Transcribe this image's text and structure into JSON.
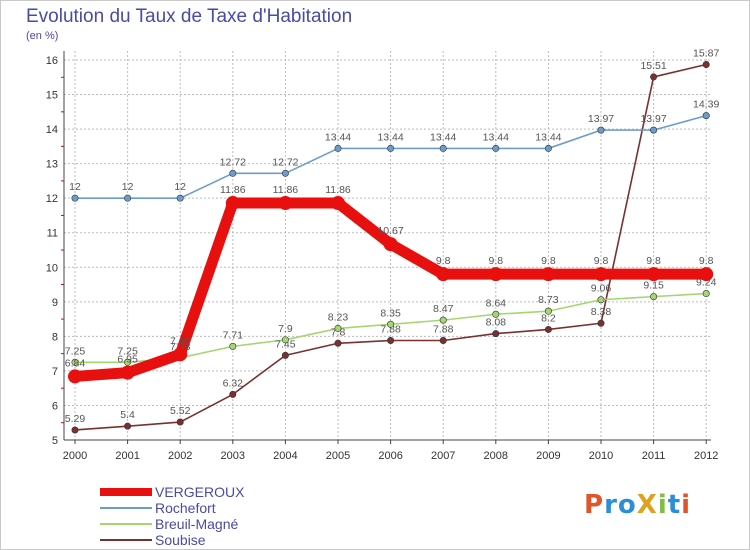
{
  "title": "Evolution du Taux de Taxe d'Habitation",
  "subtitle": "(en %)",
  "logo": "ProXiti",
  "logo_colors": [
    "#e0562a",
    "#2c8fd6",
    "#2c8fd6",
    "#e0a21c",
    "#7fbf3f",
    "#2c8fd6",
    "#e0562a"
  ],
  "chart_data": {
    "type": "line",
    "x": [
      "2000",
      "2001",
      "2002",
      "2003",
      "2004",
      "2005",
      "2006",
      "2007",
      "2008",
      "2009",
      "2010",
      "2011",
      "2012"
    ],
    "ylim": [
      5,
      16
    ],
    "yticks": [
      "5",
      "6",
      "7",
      "8",
      "9",
      "10",
      "11",
      "12",
      "13",
      "14",
      "15",
      "16"
    ],
    "grid": true,
    "legend_position": "bottom-left",
    "series": [
      {
        "name": "VERGEROUX",
        "color": "#e8100e",
        "thick": true,
        "values": [
          6.84,
          6.95,
          7.48,
          11.86,
          11.86,
          11.86,
          10.67,
          9.8,
          9.8,
          9.8,
          9.8,
          9.8,
          9.8
        ],
        "labels": [
          "6.84",
          "6.95",
          "7.48",
          "11.86",
          "11.86",
          "11.86",
          "10.67",
          "9.8",
          "9.8",
          "9.8",
          "9.8",
          "9.8",
          "9.8"
        ]
      },
      {
        "name": "Rochefort",
        "color": "#6c9ccc",
        "thick": false,
        "values": [
          12,
          12,
          12,
          12.72,
          12.72,
          13.44,
          13.44,
          13.44,
          13.44,
          13.44,
          13.97,
          13.97,
          14.39
        ],
        "labels": [
          "12",
          "12",
          "12",
          "12.72",
          "12.72",
          "13.44",
          "13.44",
          "13.44",
          "13.44",
          "13.44",
          "13.97",
          "13.97",
          "14.39"
        ]
      },
      {
        "name": "Breuil-Magné",
        "color": "#a4d770",
        "thick": false,
        "values": [
          7.25,
          7.25,
          7.38,
          7.71,
          7.9,
          8.23,
          8.35,
          8.47,
          8.64,
          8.73,
          9.06,
          9.15,
          9.24
        ],
        "labels": [
          "7.25",
          "7.25",
          "7.38",
          "7.71",
          "7.9",
          "8.23",
          "8.35",
          "8.47",
          "8.64",
          "8.73",
          "9.06",
          "9.15",
          "9.24"
        ]
      },
      {
        "name": "Soubise",
        "color": "#7a3030",
        "thick": false,
        "values": [
          5.29,
          5.4,
          5.52,
          6.32,
          7.45,
          7.8,
          7.88,
          7.88,
          8.08,
          8.2,
          8.38,
          15.51,
          15.87
        ],
        "labels": [
          "5.29",
          "5.4",
          "5.52",
          "6.32",
          "7.45",
          "7.8",
          "7.88",
          "7.88",
          "8.08",
          "8.2",
          "8.38",
          "15.51",
          "15.87"
        ]
      }
    ]
  }
}
